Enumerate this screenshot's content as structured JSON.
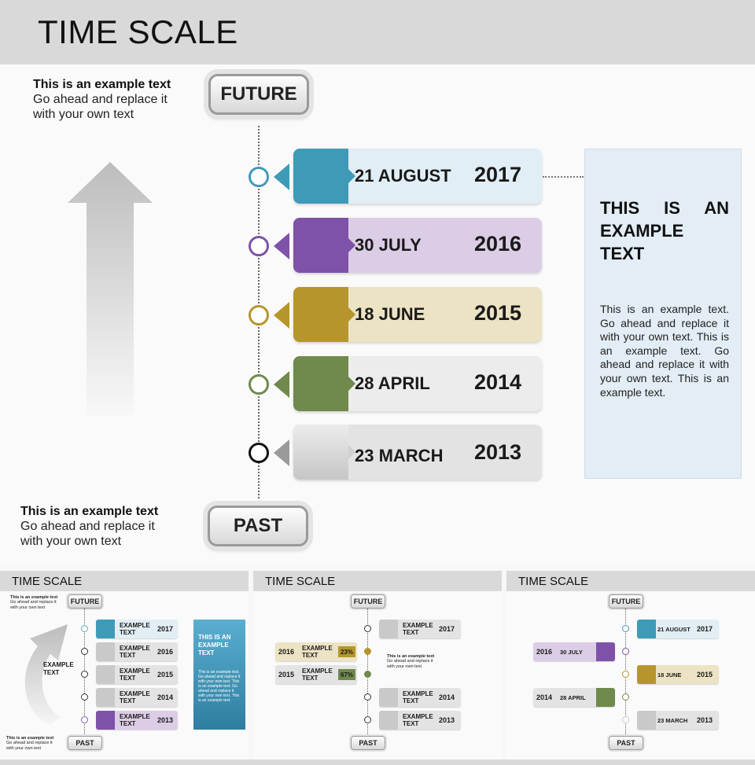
{
  "main": {
    "title": "TIME SCALE",
    "future_label": "FUTURE",
    "past_label": "PAST",
    "note_top": {
      "heading": "This is an example text",
      "line1": "Go ahead and replace it",
      "line2": "with your own text"
    },
    "note_bottom": {
      "heading": "This is an example text",
      "line1": "Go ahead and replace it",
      "line2": "with your own text"
    },
    "timeline": [
      {
        "date": "21 AUGUST",
        "year": "2017",
        "color": "#3f9ab8",
        "light": "#e2eef5"
      },
      {
        "date": "30 JULY",
        "year": "2016",
        "color": "#7d52a8",
        "light": "#dccde6"
      },
      {
        "date": "18 JUNE",
        "year": "2015",
        "color": "#b6962c",
        "light": "#ece3c4"
      },
      {
        "date": "28 APRIL",
        "year": "2014",
        "color": "#6f8a4c",
        "light": "#ececec"
      },
      {
        "date": "23 MARCH",
        "year": "2013",
        "color": "#b3b3b3",
        "light": "#e3e3e3"
      }
    ],
    "side_box": {
      "title": "THIS IS AN EXAMPLE TEXT",
      "text": "This is an example text. Go ahead and replace it with your own text. This is an example text. Go ahead and replace it with your own text. This is an example text."
    }
  },
  "thumbnails": [
    {
      "title": "TIME SCALE",
      "future_label": "FUTURE",
      "past_label": "PAST",
      "arrow_label": "EXAMPLE TEXT",
      "note_top": {
        "heading": "This is an example text",
        "line1": "Go ahead and replace it",
        "line2": "with your own text"
      },
      "note_bottom": {
        "heading": "This is an example text",
        "line1": "Go ahead and replace it",
        "line2": "with your own text"
      },
      "side_title": "THIS IS AN EXAMPLE TEXT",
      "side_text": "This is an example text. Go ahead and replace it with your own text. This is an example text. Go ahead and replace it with your own text. This is an example text.",
      "rows": [
        {
          "label": "EXAMPLE TEXT",
          "year": "2017"
        },
        {
          "label": "EXAMPLE TEXT",
          "year": "2016"
        },
        {
          "label": "EXAMPLE TEXT",
          "year": "2015"
        },
        {
          "label": "EXAMPLE TEXT",
          "year": "2014"
        },
        {
          "label": "EXAMPLE TEXT",
          "year": "2013"
        }
      ]
    },
    {
      "title": "TIME SCALE",
      "future_label": "FUTURE",
      "past_label": "PAST",
      "note": {
        "heading": "This is an example text",
        "line1": "Go ahead and replace it",
        "line2": "with your own text"
      },
      "right_rows": [
        {
          "label": "EXAMPLE TEXT",
          "year": "2017"
        },
        {
          "label": "EXAMPLE TEXT",
          "year": "2014"
        },
        {
          "label": "EXAMPLE TEXT",
          "year": "2013"
        }
      ],
      "left_rows": [
        {
          "year": "2016",
          "label": "EXAMPLE TEXT",
          "percent": "23%"
        },
        {
          "year": "2015",
          "label": "EXAMPLE TEXT",
          "percent": "67%"
        }
      ]
    },
    {
      "title": "TIME SCALE",
      "future_label": "FUTURE",
      "past_label": "PAST",
      "right_rows": [
        {
          "date": "21 AUGUST",
          "year": "2017"
        },
        {
          "date": "18 JUNE",
          "year": "2015"
        },
        {
          "date": "23 MARCH",
          "year": "2013"
        }
      ],
      "left_rows": [
        {
          "year": "2016",
          "date": "30 JULY"
        },
        {
          "year": "2014",
          "date": "28 APRIL"
        }
      ]
    }
  ]
}
